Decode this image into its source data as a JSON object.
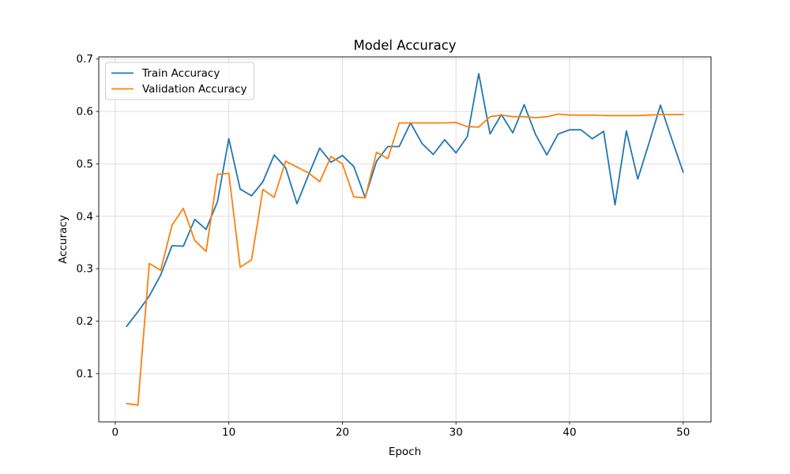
{
  "page": {
    "background": "#ffffff"
  },
  "chart_data": {
    "type": "line",
    "title": "Model Accuracy",
    "xlabel": "Epoch",
    "ylabel": "Accuracy",
    "grid": true,
    "legend_position": "upper left",
    "xlim": [
      -1.45,
      52.45
    ],
    "ylim": [
      0.008,
      0.704
    ],
    "x_ticks": [
      0,
      10,
      20,
      30,
      40,
      50
    ],
    "y_ticks": [
      0.1,
      0.2,
      0.3,
      0.4,
      0.5,
      0.6,
      0.7
    ],
    "x": [
      1,
      2,
      3,
      4,
      5,
      6,
      7,
      8,
      9,
      10,
      11,
      12,
      13,
      14,
      15,
      16,
      17,
      18,
      19,
      20,
      21,
      22,
      23,
      24,
      25,
      26,
      27,
      28,
      29,
      30,
      31,
      32,
      33,
      34,
      35,
      36,
      37,
      38,
      39,
      40,
      41,
      42,
      43,
      44,
      45,
      46,
      47,
      48,
      49,
      50
    ],
    "series": [
      {
        "name": "Train Accuracy",
        "color": "#1f77b4",
        "values": [
          0.19,
          0.218,
          0.248,
          0.288,
          0.344,
          0.343,
          0.394,
          0.375,
          0.428,
          0.548,
          0.452,
          0.439,
          0.466,
          0.517,
          0.493,
          0.424,
          0.478,
          0.53,
          0.503,
          0.516,
          0.495,
          0.436,
          0.505,
          0.533,
          0.533,
          0.578,
          0.539,
          0.518,
          0.546,
          0.521,
          0.552,
          0.672,
          0.557,
          0.594,
          0.559,
          0.613,
          0.556,
          0.517,
          0.557,
          0.565,
          0.565,
          0.548,
          0.562,
          0.422,
          0.563,
          0.471,
          0.54,
          0.612,
          0.547,
          0.484
        ]
      },
      {
        "name": "Validation Accuracy",
        "color": "#ff7f0e",
        "values": [
          0.043,
          0.04,
          0.31,
          0.297,
          0.383,
          0.415,
          0.354,
          0.333,
          0.48,
          0.482,
          0.303,
          0.317,
          0.451,
          0.436,
          0.505,
          0.494,
          0.483,
          0.466,
          0.514,
          0.5,
          0.437,
          0.435,
          0.522,
          0.51,
          0.578,
          0.578,
          0.578,
          0.578,
          0.578,
          0.579,
          0.571,
          0.57,
          0.59,
          0.593,
          0.59,
          0.59,
          0.588,
          0.59,
          0.595,
          0.593,
          0.593,
          0.593,
          0.592,
          0.592,
          0.592,
          0.592,
          0.593,
          0.594,
          0.594,
          0.594
        ]
      }
    ],
    "style": {
      "grid_color": "#d9d9d9",
      "spine_color": "#1a1a1a",
      "tick_color": "#262626",
      "legend_border_color": "#cccccc",
      "background": "#ffffff"
    }
  }
}
